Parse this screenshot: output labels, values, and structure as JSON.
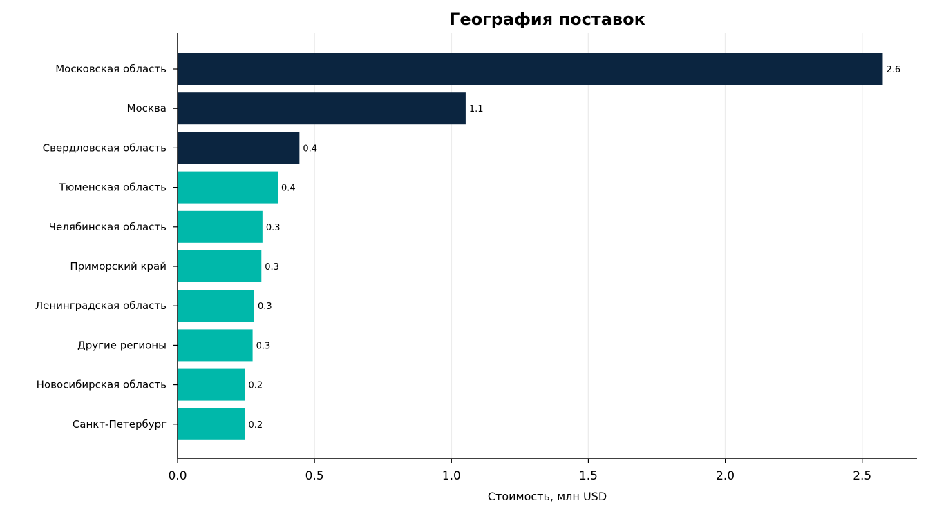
{
  "chart_data": {
    "type": "bar",
    "orientation": "horizontal",
    "title": "География поставок",
    "xlabel": "Стоимость, млн USD",
    "ylabel": "",
    "xlim": [
      0,
      2.7
    ],
    "xticks": [
      0.0,
      0.5,
      1.0,
      1.5,
      2.0,
      2.5
    ],
    "xtick_labels": [
      "0.0",
      "0.5",
      "1.0",
      "1.5",
      "2.0",
      "2.5"
    ],
    "grid": "vertical",
    "categories": [
      "Московская область",
      "Москва",
      "Свердловская область",
      "Тюменская область",
      "Челябинская область",
      "Приморский край",
      "Ленинградская область",
      "Другие регионы",
      "Новосибирская область",
      "Санкт-Петербург"
    ],
    "values": [
      2.575,
      1.052,
      0.445,
      0.366,
      0.31,
      0.306,
      0.28,
      0.274,
      0.246,
      0.246
    ],
    "value_labels": [
      "2.6",
      "1.1",
      "0.4",
      "0.4",
      "0.3",
      "0.3",
      "0.3",
      "0.3",
      "0.2",
      "0.2"
    ],
    "colors": [
      "#0b2540",
      "#0b2540",
      "#0b2540",
      "#00b8aa",
      "#00b8aa",
      "#00b8aa",
      "#00b8aa",
      "#00b8aa",
      "#00b8aa",
      "#00b8aa"
    ],
    "grid_color": "#ececec",
    "axis_color": "#000000"
  }
}
